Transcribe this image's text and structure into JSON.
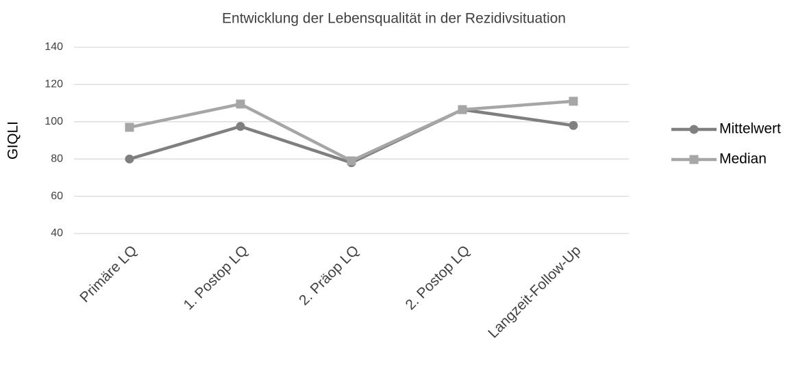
{
  "chart_data": {
    "type": "line",
    "title": "Entwicklung der Lebensqualität in der Rezidivsituation",
    "y_label": "GIQLI",
    "categories": [
      "Primäre LQ",
      "1. Postop LQ",
      "2. Präop LQ",
      "2. Postop LQ",
      "Langzeit-Follow-Up"
    ],
    "series": [
      {
        "name": "Mittelwert",
        "color": "#7f7f7f",
        "marker": "circle",
        "values": [
          80,
          97.5,
          78,
          106.5,
          98
        ]
      },
      {
        "name": "Median",
        "color": "#a6a6a6",
        "marker": "square",
        "values": [
          97,
          109.5,
          79,
          106.5,
          111
        ]
      }
    ],
    "ylim": [
      40,
      140
    ],
    "yticks": [
      40,
      60,
      80,
      100,
      120,
      140
    ],
    "grid": true,
    "legend": "right"
  }
}
